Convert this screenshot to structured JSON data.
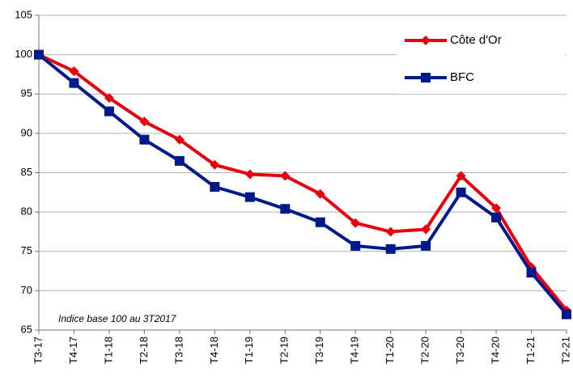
{
  "chart_data": {
    "type": "line",
    "annotation": "Indice base 100 au 3T2017",
    "categories": [
      "T3-17",
      "T4-17",
      "T1-18",
      "T2-18",
      "T3-18",
      "T4-18",
      "T1-19",
      "T2-19",
      "T3-19",
      "T4-19",
      "T1-20",
      "T2-20",
      "T3-20",
      "T4-20",
      "T1-21",
      "T2-21"
    ],
    "series": [
      {
        "name": "Côte d'Or",
        "color": "#e8000e",
        "marker": "diamond",
        "values": [
          100,
          97.9,
          94.5,
          91.5,
          89.2,
          86,
          84.8,
          84.6,
          82.3,
          78.6,
          77.5,
          77.8,
          84.6,
          80.5,
          73,
          67.5
        ]
      },
      {
        "name": "BFC",
        "color": "#001a8c",
        "marker": "square",
        "values": [
          100,
          96.4,
          92.8,
          89.2,
          86.5,
          83.2,
          81.9,
          80.4,
          78.7,
          75.7,
          75.3,
          75.7,
          82.5,
          79.3,
          72.3,
          67
        ]
      }
    ],
    "ylim": [
      65,
      105
    ],
    "yticks": [
      65,
      70,
      75,
      80,
      85,
      90,
      95,
      100,
      105
    ],
    "grid": true,
    "legend": "top-right"
  }
}
